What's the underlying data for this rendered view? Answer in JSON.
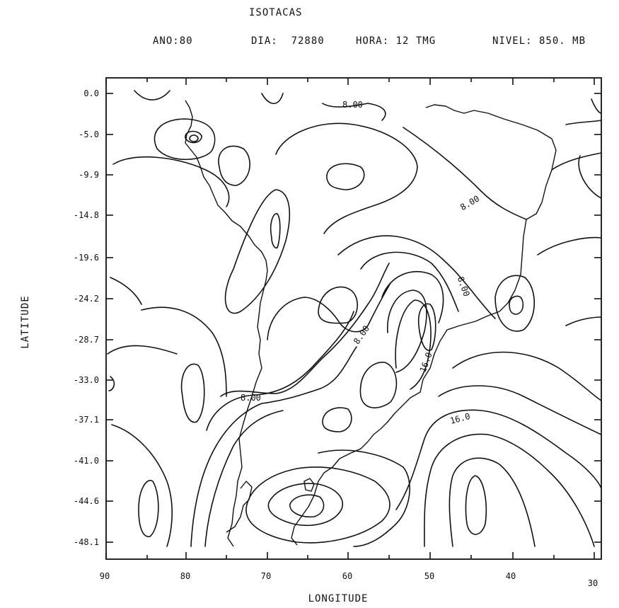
{
  "title": "ISOTACAS",
  "header": {
    "ano": "ANO:80",
    "dia": "DIA:  72880",
    "hora": "HORA: 12 TMG",
    "nivel": "NIVEL: 850. MB"
  },
  "map": {
    "xlabel": "LONGITUDE",
    "ylabel": "LATITUDE",
    "x_ticks": [
      "90",
      "80",
      "70",
      "60",
      "50",
      "40",
      "30"
    ],
    "y_ticks": [
      "0.0",
      "-5.0",
      "-9.9",
      "-14.8",
      "-19.6",
      "-24.2",
      "-28.7",
      "-33.0",
      "-37.1",
      "-41.0",
      "-44.6",
      "-48.1"
    ],
    "contour_labels": [
      "8.00",
      "8.00",
      "8.00",
      "8.00",
      "8.00",
      "16.0",
      "16.0"
    ],
    "line_color": "#111111"
  }
}
